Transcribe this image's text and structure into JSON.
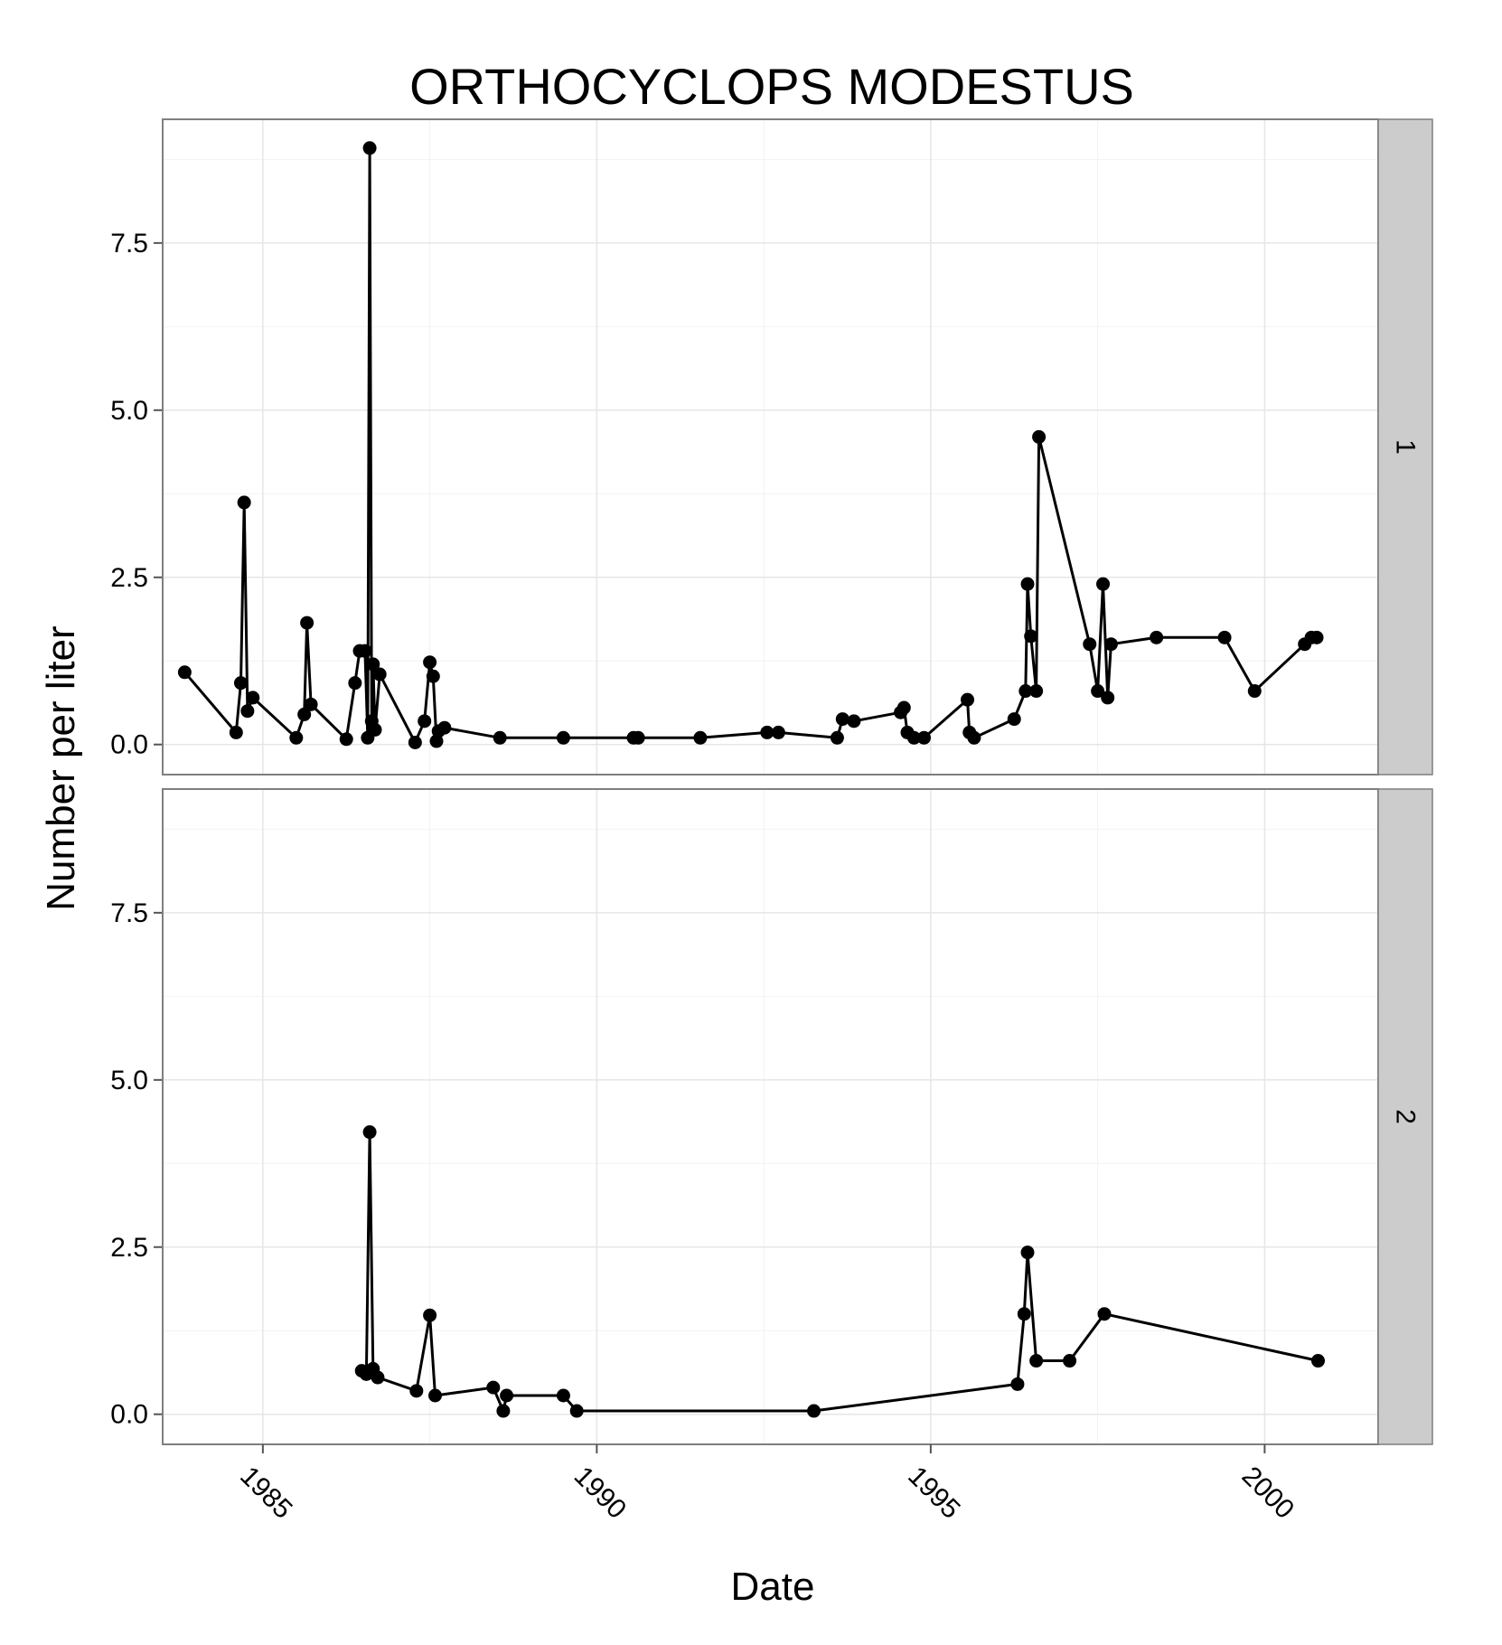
{
  "chart_data": {
    "type": "line",
    "title": "ORTHOCYCLOPS MODESTUS",
    "xlabel": "Date",
    "ylabel": "Number per liter",
    "xlim": [
      1983.5,
      2001.7
    ],
    "ylim": [
      -0.45,
      9.35
    ],
    "x_ticks": [
      1985,
      1990,
      1995,
      2000
    ],
    "y_ticks": [
      0.0,
      2.5,
      5.0,
      7.5
    ],
    "x_tick_labels": [
      "1985",
      "1990",
      "1995",
      "2000"
    ],
    "y_tick_labels": [
      "0.0",
      "2.5",
      "5.0",
      "7.5"
    ],
    "grid": true,
    "legend": "none",
    "panels": [
      {
        "strip": "1",
        "points": [
          [
            1983.83,
            1.08
          ],
          [
            1984.6,
            0.18
          ],
          [
            1984.67,
            0.92
          ],
          [
            1984.72,
            3.62
          ],
          [
            1984.77,
            0.5
          ],
          [
            1984.85,
            0.7
          ],
          [
            1985.5,
            0.1
          ],
          [
            1985.62,
            0.45
          ],
          [
            1985.66,
            1.82
          ],
          [
            1985.72,
            0.6
          ],
          [
            1986.25,
            0.08
          ],
          [
            1986.38,
            0.92
          ],
          [
            1986.45,
            1.4
          ],
          [
            1986.53,
            1.4
          ],
          [
            1986.57,
            0.1
          ],
          [
            1986.6,
            8.92
          ],
          [
            1986.63,
            0.35
          ],
          [
            1986.65,
            1.2
          ],
          [
            1986.68,
            0.22
          ],
          [
            1986.75,
            1.05
          ],
          [
            1987.28,
            0.03
          ],
          [
            1987.42,
            0.35
          ],
          [
            1987.5,
            1.23
          ],
          [
            1987.55,
            1.02
          ],
          [
            1987.6,
            0.05
          ],
          [
            1987.63,
            0.2
          ],
          [
            1987.72,
            0.25
          ],
          [
            1988.55,
            0.1
          ],
          [
            1989.5,
            0.1
          ],
          [
            1990.55,
            0.1
          ],
          [
            1990.62,
            0.1
          ],
          [
            1991.55,
            0.1
          ],
          [
            1992.55,
            0.18
          ],
          [
            1992.72,
            0.18
          ],
          [
            1993.6,
            0.1
          ],
          [
            1993.68,
            0.38
          ],
          [
            1993.85,
            0.35
          ],
          [
            1994.55,
            0.48
          ],
          [
            1994.6,
            0.55
          ],
          [
            1994.65,
            0.18
          ],
          [
            1994.75,
            0.1
          ],
          [
            1994.9,
            0.1
          ],
          [
            1995.55,
            0.67
          ],
          [
            1995.58,
            0.18
          ],
          [
            1995.65,
            0.1
          ],
          [
            1996.25,
            0.38
          ],
          [
            1996.42,
            0.8
          ],
          [
            1996.45,
            2.4
          ],
          [
            1996.5,
            1.62
          ],
          [
            1996.58,
            0.8
          ],
          [
            1996.62,
            4.6
          ],
          [
            1997.38,
            1.5
          ],
          [
            1997.5,
            0.8
          ],
          [
            1997.58,
            2.4
          ],
          [
            1997.65,
            0.7
          ],
          [
            1997.7,
            1.5
          ],
          [
            1998.38,
            1.6
          ],
          [
            1999.4,
            1.6
          ],
          [
            1999.85,
            0.8
          ],
          [
            2000.6,
            1.5
          ],
          [
            2000.7,
            1.6
          ],
          [
            2000.78,
            1.6
          ]
        ]
      },
      {
        "strip": "2",
        "points": [
          [
            1986.48,
            0.65
          ],
          [
            1986.55,
            0.6
          ],
          [
            1986.6,
            4.22
          ],
          [
            1986.65,
            0.68
          ],
          [
            1986.72,
            0.55
          ],
          [
            1987.3,
            0.35
          ],
          [
            1987.5,
            1.48
          ],
          [
            1987.58,
            0.28
          ],
          [
            1988.45,
            0.4
          ],
          [
            1988.6,
            0.05
          ],
          [
            1988.65,
            0.28
          ],
          [
            1989.5,
            0.28
          ],
          [
            1989.7,
            0.05
          ],
          [
            1993.25,
            0.05
          ],
          [
            1996.3,
            0.45
          ],
          [
            1996.4,
            1.5
          ],
          [
            1996.45,
            2.42
          ],
          [
            1996.58,
            0.8
          ],
          [
            1997.08,
            0.8
          ],
          [
            1997.6,
            1.5
          ],
          [
            2000.8,
            0.8
          ]
        ]
      }
    ]
  }
}
